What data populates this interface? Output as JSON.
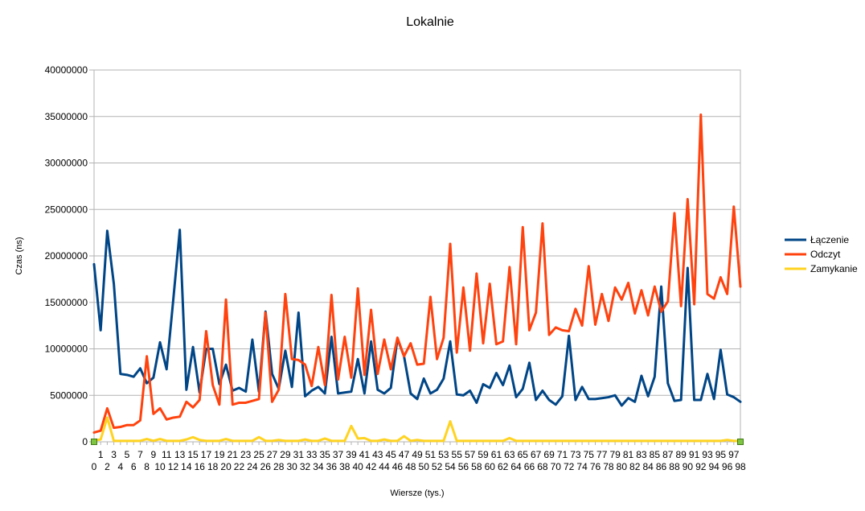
{
  "chart_data": {
    "type": "line",
    "title": "Lokalnie",
    "xlabel": "Wiersze (tys.)",
    "ylabel": "Czas (ns)",
    "ylim": [
      0,
      40000000
    ],
    "yticks": [
      "0",
      "5000000",
      "10000000",
      "15000000",
      "20000000",
      "25000000",
      "30000000",
      "35000000",
      "40000000"
    ],
    "grid": "horizontal",
    "legend": "right",
    "x": [
      0,
      1,
      2,
      3,
      4,
      5,
      6,
      7,
      8,
      9,
      10,
      11,
      12,
      13,
      14,
      15,
      16,
      17,
      18,
      19,
      20,
      21,
      22,
      23,
      24,
      25,
      26,
      27,
      28,
      29,
      30,
      31,
      32,
      33,
      34,
      35,
      36,
      37,
      38,
      39,
      40,
      41,
      42,
      43,
      44,
      45,
      46,
      47,
      48,
      49,
      50,
      51,
      52,
      53,
      54,
      55,
      56,
      57,
      58,
      59,
      60,
      61,
      62,
      63,
      64,
      65,
      66,
      67,
      68,
      69,
      70,
      71,
      72,
      73,
      74,
      75,
      76,
      77,
      78,
      79,
      80,
      81,
      82,
      83,
      84,
      85,
      86,
      87,
      88,
      89,
      90,
      91,
      92,
      93,
      94,
      95,
      96,
      97,
      98
    ],
    "series": [
      {
        "name": "Łączenie",
        "color": "#004586",
        "values": [
          19100000,
          12000000,
          22700000,
          17000000,
          7300000,
          7200000,
          7000000,
          7900000,
          6300000,
          6900000,
          10700000,
          7800000,
          15200000,
          22800000,
          5600000,
          10200000,
          5300000,
          10000000,
          10000000,
          6200000,
          8300000,
          5500000,
          5800000,
          5400000,
          11000000,
          5400000,
          14000000,
          7300000,
          5700000,
          9800000,
          5900000,
          13900000,
          4900000,
          5500000,
          5900000,
          5200000,
          11300000,
          5200000,
          5300000,
          5400000,
          8900000,
          5200000,
          10800000,
          5600000,
          5200000,
          5800000,
          11100000,
          9200000,
          5200000,
          4600000,
          6800000,
          5200000,
          5600000,
          6800000,
          10800000,
          5100000,
          5000000,
          5500000,
          4200000,
          6200000,
          5800000,
          7400000,
          6100000,
          8200000,
          4800000,
          5700000,
          8500000,
          4500000,
          5500000,
          4500000,
          4000000,
          4900000,
          11400000,
          4500000,
          5900000,
          4600000,
          4600000,
          4700000,
          4800000,
          5000000,
          3900000,
          4700000,
          4300000,
          7100000,
          4900000,
          7000000,
          16700000,
          6300000,
          4400000,
          4500000,
          18700000,
          4500000,
          4500000,
          7300000,
          4600000,
          9900000,
          5100000,
          4800000,
          4300000
        ]
      },
      {
        "name": "Odczyt",
        "color": "#ff420e",
        "values": [
          1000000,
          1200000,
          3600000,
          1500000,
          1600000,
          1800000,
          1800000,
          2300000,
          9200000,
          3000000,
          3600000,
          2400000,
          2600000,
          2700000,
          4300000,
          3700000,
          4500000,
          11900000,
          6100000,
          4000000,
          15300000,
          4000000,
          4200000,
          4200000,
          4400000,
          4600000,
          13900000,
          4300000,
          5600000,
          15900000,
          8900000,
          8800000,
          8300000,
          6000000,
          10200000,
          6100000,
          15800000,
          6700000,
          11300000,
          6900000,
          16500000,
          7200000,
          14200000,
          7300000,
          11000000,
          7800000,
          11200000,
          9200000,
          10600000,
          8300000,
          8400000,
          15600000,
          8900000,
          11200000,
          21300000,
          9600000,
          16600000,
          9800000,
          18100000,
          10600000,
          17000000,
          10500000,
          10800000,
          18800000,
          10500000,
          23100000,
          12000000,
          13900000,
          23500000,
          11500000,
          12300000,
          12000000,
          11900000,
          14300000,
          12500000,
          18900000,
          12600000,
          15900000,
          13000000,
          16600000,
          15300000,
          17100000,
          13800000,
          16300000,
          13600000,
          16700000,
          14000000,
          15100000,
          24600000,
          14600000,
          26100000,
          14800000,
          35200000,
          15900000,
          15400000,
          17700000,
          15900000,
          25300000,
          16700000
        ]
      },
      {
        "name": "Zamykanie",
        "color": "#ffd320",
        "values": [
          150000,
          250000,
          2600000,
          100000,
          100000,
          100000,
          100000,
          100000,
          300000,
          100000,
          300000,
          100000,
          100000,
          100000,
          250000,
          500000,
          200000,
          100000,
          100000,
          100000,
          300000,
          100000,
          100000,
          100000,
          100000,
          500000,
          100000,
          100000,
          200000,
          100000,
          100000,
          100000,
          250000,
          100000,
          100000,
          350000,
          100000,
          100000,
          100000,
          1700000,
          350000,
          400000,
          100000,
          100000,
          250000,
          100000,
          100000,
          600000,
          100000,
          200000,
          100000,
          100000,
          100000,
          100000,
          2200000,
          100000,
          100000,
          100000,
          100000,
          100000,
          100000,
          100000,
          100000,
          400000,
          100000,
          100000,
          100000,
          100000,
          100000,
          100000,
          100000,
          100000,
          100000,
          100000,
          100000,
          100000,
          100000,
          100000,
          100000,
          100000,
          100000,
          100000,
          100000,
          100000,
          100000,
          100000,
          100000,
          100000,
          100000,
          100000,
          100000,
          100000,
          100000,
          100000,
          100000,
          100000,
          200000,
          100000,
          100000
        ]
      }
    ]
  }
}
